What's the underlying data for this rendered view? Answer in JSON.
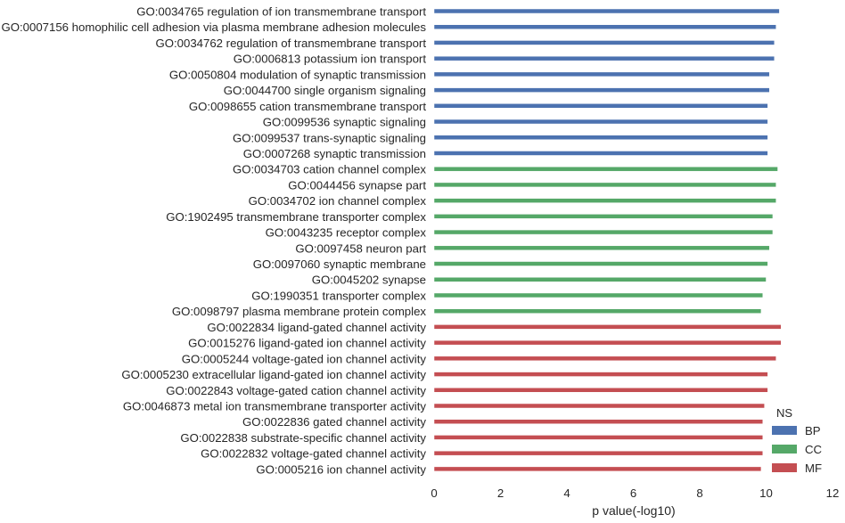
{
  "chart_data": {
    "type": "bar",
    "orientation": "horizontal",
    "title": "",
    "xlabel": "p value(-log10)",
    "ylabel": "",
    "xlim": [
      0,
      12
    ],
    "xticks": [
      "0",
      "2",
      "4",
      "6",
      "8",
      "10",
      "12"
    ],
    "grid": false,
    "legend": {
      "title": "NS",
      "placement": "bottom-right",
      "entries": [
        {
          "name": "BP",
          "color": "#4c72b0"
        },
        {
          "name": "CC",
          "color": "#55a868"
        },
        {
          "name": "MF",
          "color": "#c44e52"
        }
      ]
    },
    "categories": [
      "GO:0034765 regulation of ion transmembrane transport",
      "GO:0007156 homophilic cell adhesion via plasma membrane adhesion molecules",
      "GO:0034762 regulation of transmembrane transport",
      "GO:0006813 potassium ion transport",
      "GO:0050804 modulation of synaptic transmission",
      "GO:0044700 single organism signaling",
      "GO:0098655 cation transmembrane transport",
      "GO:0099536 synaptic signaling",
      "GO:0099537 trans-synaptic signaling",
      "GO:0007268 synaptic transmission",
      "GO:0034703 cation channel complex",
      "GO:0044456 synapse part",
      "GO:0034702 ion channel complex",
      "GO:1902495 transmembrane transporter complex",
      "GO:0043235 receptor complex",
      "GO:0097458 neuron part",
      "GO:0097060 synaptic membrane",
      "GO:0045202 synapse",
      "GO:1990351 transporter complex",
      "GO:0098797 plasma membrane protein complex",
      "GO:0022834 ligand-gated channel activity",
      "GO:0015276 ligand-gated ion channel activity",
      "GO:0005244 voltage-gated ion channel activity",
      "GO:0005230 extracellular ligand-gated ion channel activity",
      "GO:0022843 voltage-gated cation channel activity",
      "GO:0046873 metal ion transmembrane transporter activity",
      "GO:0022836 gated channel activity",
      "GO:0022838 substrate-specific channel activity",
      "GO:0022832 voltage-gated channel activity",
      "GO:0005216 ion channel activity"
    ],
    "values": [
      10.4,
      10.3,
      10.25,
      10.25,
      10.1,
      10.1,
      10.05,
      10.05,
      10.05,
      10.05,
      10.35,
      10.3,
      10.3,
      10.2,
      10.2,
      10.1,
      10.05,
      10.0,
      9.9,
      9.85,
      10.45,
      10.45,
      10.3,
      10.05,
      10.05,
      9.95,
      9.9,
      9.9,
      9.9,
      9.85
    ],
    "groups": [
      "BP",
      "BP",
      "BP",
      "BP",
      "BP",
      "BP",
      "BP",
      "BP",
      "BP",
      "BP",
      "CC",
      "CC",
      "CC",
      "CC",
      "CC",
      "CC",
      "CC",
      "CC",
      "CC",
      "CC",
      "MF",
      "MF",
      "MF",
      "MF",
      "MF",
      "MF",
      "MF",
      "MF",
      "MF",
      "MF"
    ]
  }
}
